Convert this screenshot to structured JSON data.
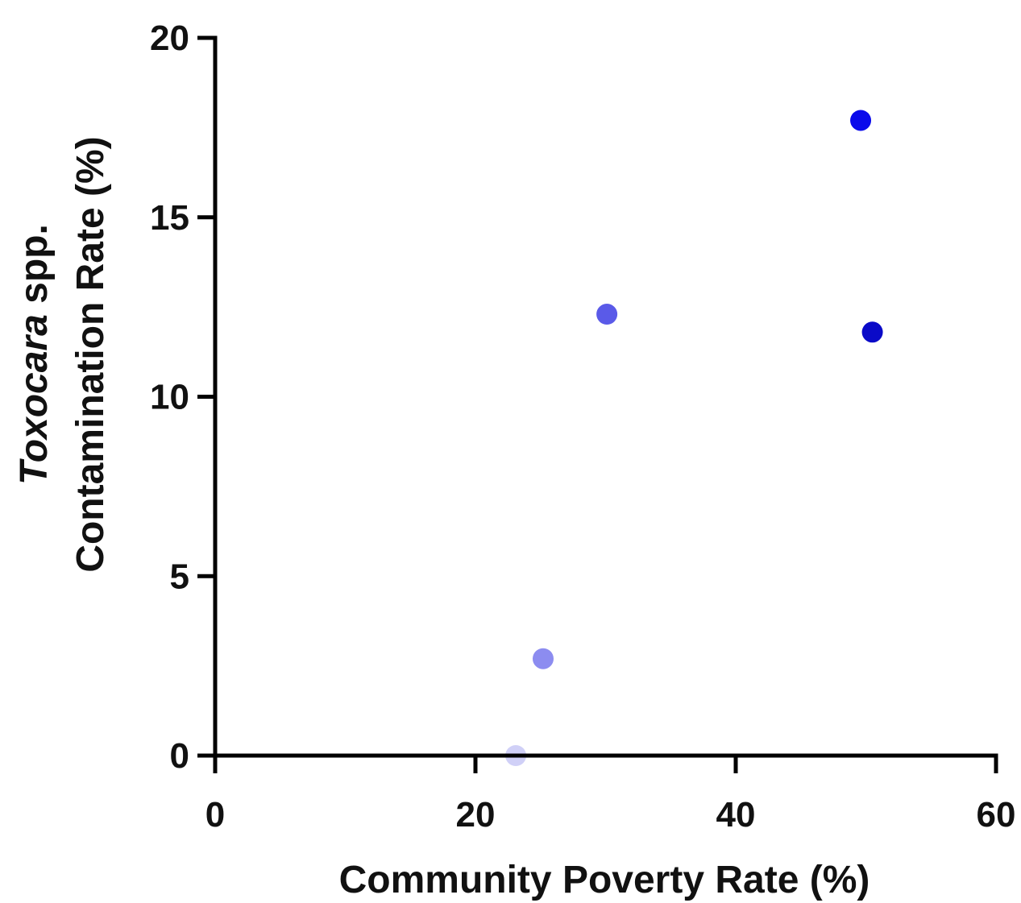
{
  "chart_data": {
    "type": "scatter",
    "xlabel": "Community  Poverty Rate (%)",
    "ylabel_line1_italic": "Toxocara",
    "ylabel_line1_rest": " spp.",
    "ylabel_line2": "Contamination Rate (%)",
    "xlim": [
      0,
      60
    ],
    "ylim": [
      0,
      20
    ],
    "x_ticks": [
      0,
      20,
      40,
      60
    ],
    "y_ticks": [
      0,
      5,
      10,
      15,
      20
    ],
    "grid": false,
    "legend": false,
    "points": [
      {
        "x": 23.1,
        "y": 0.0,
        "color": "#d0d0f7"
      },
      {
        "x": 25.2,
        "y": 2.7,
        "color": "#8c8cf0"
      },
      {
        "x": 30.1,
        "y": 12.3,
        "color": "#5a5ae8"
      },
      {
        "x": 49.6,
        "y": 17.7,
        "color": "#0a0aeb"
      },
      {
        "x": 50.5,
        "y": 11.8,
        "color": "#0a0ac8"
      }
    ]
  }
}
